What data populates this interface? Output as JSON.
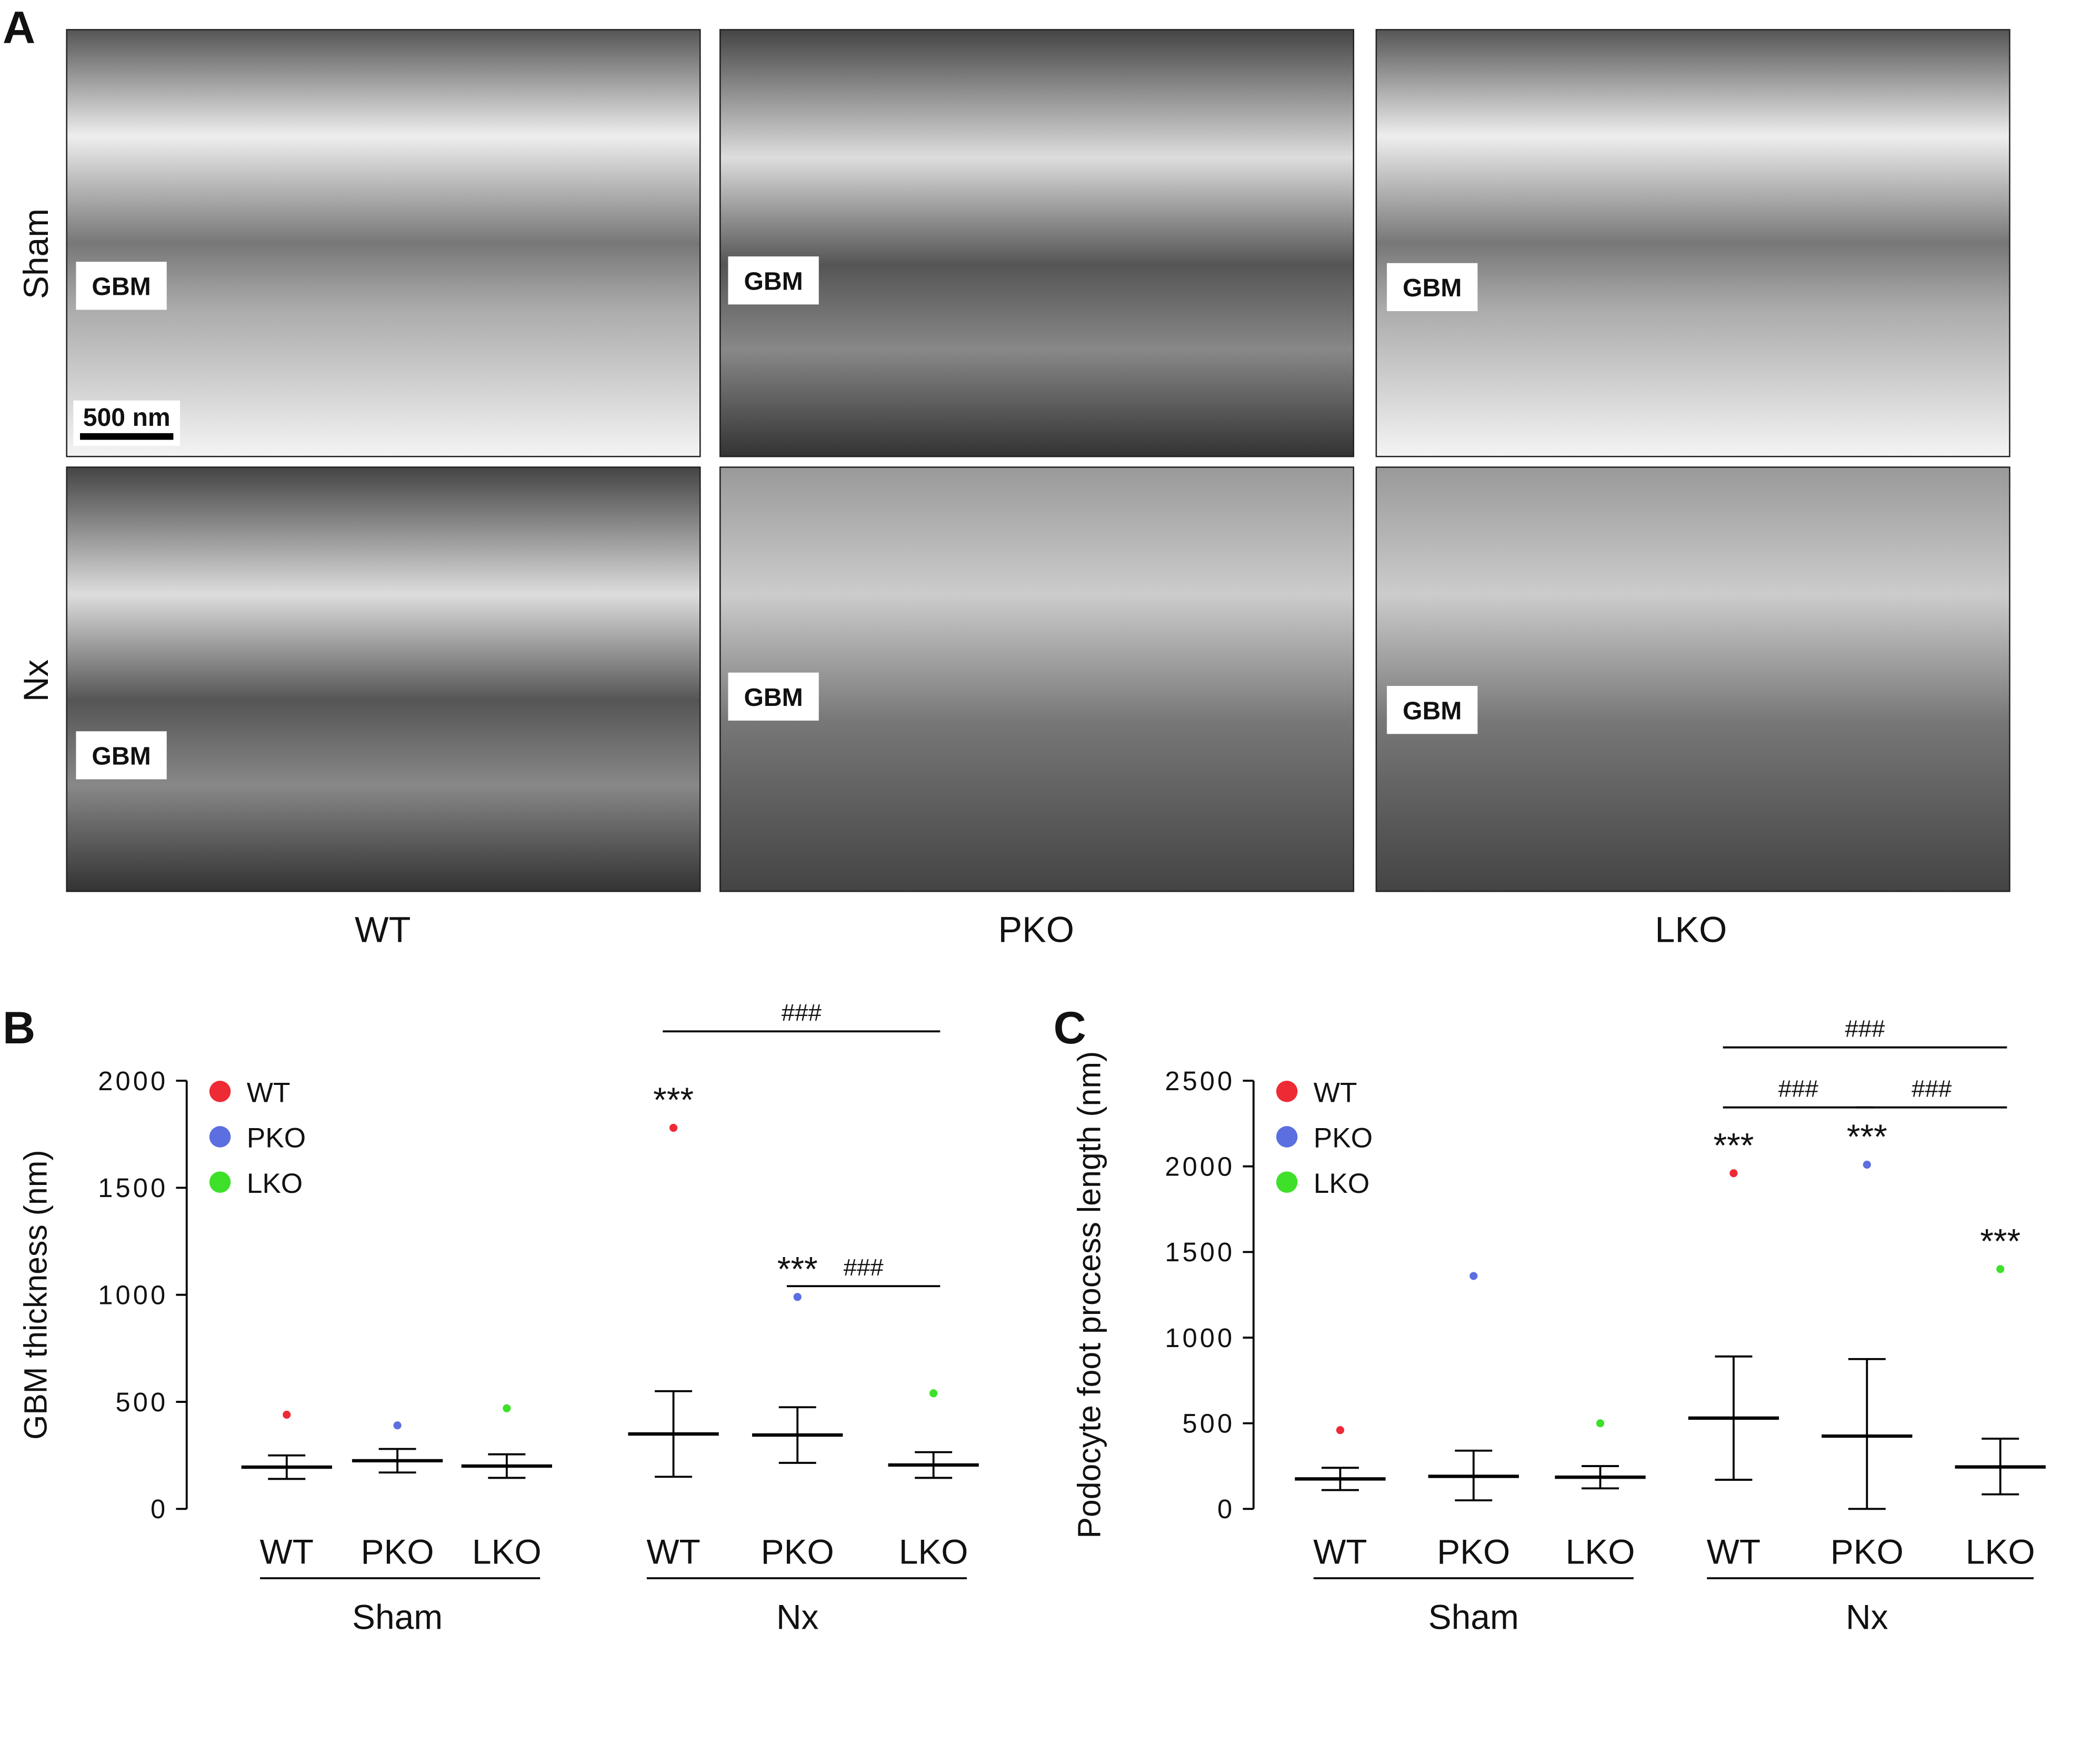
{
  "panel_labels": [
    "A",
    "B",
    "C"
  ],
  "micrographs": {
    "gbm_label": "GBM",
    "scale_bar": "500 nm",
    "rows": [
      "Sham",
      "Nx"
    ],
    "columns": [
      "WT",
      "PKO",
      "LKO"
    ]
  },
  "chart_data": [
    {
      "type": "dot",
      "ylabel": "GBM thickness (nm)",
      "categories": [
        "WT",
        "PKO",
        "LKO",
        "WT",
        "PKO",
        "LKO"
      ],
      "group_labels": [
        "Sham",
        "Nx"
      ],
      "series": [
        {
          "name": "WT",
          "color": "#ee2a34"
        },
        {
          "name": "PKO",
          "color": "#5b6fe0"
        },
        {
          "name": "LKO",
          "color": "#3ee02a"
        }
      ],
      "values": [
        195,
        225,
        200,
        350,
        345,
        205
      ],
      "error_low": [
        140,
        170,
        145,
        150,
        215,
        145
      ],
      "error_high": [
        250,
        280,
        255,
        550,
        475,
        265
      ],
      "max_points": [
        440,
        390,
        470,
        1780,
        990,
        540
      ],
      "annotations": [
        {
          "text": "***",
          "category": 3
        },
        {
          "text": "***",
          "category": 4
        }
      ],
      "brackets": [
        {
          "text": "###",
          "from": 3,
          "to": 5
        },
        {
          "text": "###",
          "from": 4,
          "to": 5
        }
      ],
      "ylim": [
        0,
        2000
      ],
      "yticks": [
        0,
        500,
        1000,
        1500,
        2000
      ]
    },
    {
      "type": "dot",
      "ylabel": "Podocyte foot process length (nm)",
      "categories": [
        "WT",
        "PKO",
        "LKO",
        "WT",
        "PKO",
        "LKO"
      ],
      "group_labels": [
        "Sham",
        "Nx"
      ],
      "series": [
        {
          "name": "WT",
          "color": "#ee2a34"
        },
        {
          "name": "PKO",
          "color": "#5b6fe0"
        },
        {
          "name": "LKO",
          "color": "#3ee02a"
        }
      ],
      "values": [
        175,
        190,
        185,
        530,
        425,
        245
      ],
      "error_low": [
        110,
        50,
        120,
        170,
        0,
        85
      ],
      "error_high": [
        240,
        340,
        250,
        890,
        875,
        410
      ],
      "max_points": [
        460,
        1360,
        500,
        1960,
        2010,
        1400
      ],
      "annotations": [
        {
          "text": "***",
          "category": 3
        },
        {
          "text": "***",
          "category": 4
        },
        {
          "text": "***",
          "category": 5
        }
      ],
      "brackets": [
        {
          "text": "###",
          "from": 3,
          "to": 5
        },
        {
          "text": "###",
          "from": 3,
          "to": 4
        },
        {
          "text": "###",
          "from": 4,
          "to": 5
        }
      ],
      "ylim": [
        0,
        2500
      ],
      "yticks": [
        0,
        500,
        1000,
        1500,
        2000,
        2500
      ]
    }
  ]
}
